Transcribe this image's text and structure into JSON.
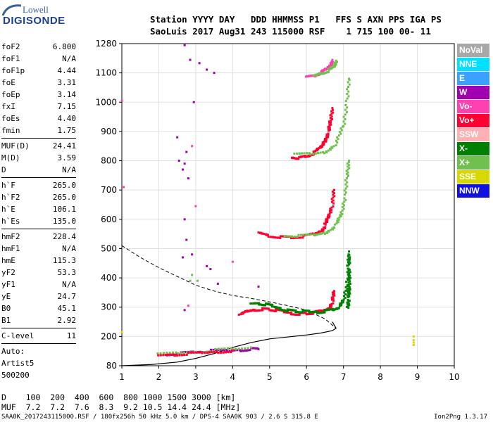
{
  "logo": {
    "line1": "Lowell",
    "line2": "DIGISONDE"
  },
  "header": {
    "row1": "Station YYYY DAY   DDD HHMMSS P1   FFS S AXN PPS IGA PS",
    "row2": "SaoLuis 2017 Aug31 243 115000 RSF    1 715 100 00- 11"
  },
  "params": {
    "group1": [
      {
        "label": "foF2",
        "value": "6.800"
      },
      {
        "label": "foF1",
        "value": "N/A"
      },
      {
        "label": "foF1p",
        "value": "4.44"
      },
      {
        "label": "foE",
        "value": "3.31"
      },
      {
        "label": "foEp",
        "value": "3.14"
      },
      {
        "label": "fxI",
        "value": "7.15"
      },
      {
        "label": "foEs",
        "value": "4.40"
      },
      {
        "label": "fmin",
        "value": "1.75"
      }
    ],
    "group2": [
      {
        "label": "MUF(D)",
        "value": "24.41"
      },
      {
        "label": "M(D)",
        "value": "3.59"
      },
      {
        "label": "D",
        "value": "N/A"
      }
    ],
    "group3": [
      {
        "label": "h`F",
        "value": "265.0"
      },
      {
        "label": "h`F2",
        "value": "265.0"
      },
      {
        "label": "h`E",
        "value": "106.1"
      },
      {
        "label": "h`Es",
        "value": "135.0"
      }
    ],
    "group4": [
      {
        "label": "hmF2",
        "value": "228.4"
      },
      {
        "label": "hmF1",
        "value": "N/A"
      },
      {
        "label": "hmE",
        "value": "115.3"
      },
      {
        "label": "yF2",
        "value": "53.3"
      },
      {
        "label": "yF1",
        "value": "N/A"
      },
      {
        "label": "yE",
        "value": "24.7"
      },
      {
        "label": "B0",
        "value": "45.1"
      },
      {
        "label": "B1",
        "value": "2.92"
      }
    ],
    "clevel": {
      "label": "C-level",
      "value": "11"
    },
    "auto": [
      "Auto:",
      "Artist5",
      "500200"
    ]
  },
  "legend": [
    {
      "label": "NoVal",
      "color": "#a8a8a8"
    },
    {
      "label": "NNE",
      "color": "#00e0ff"
    },
    {
      "label": "E",
      "color": "#3ba0ff"
    },
    {
      "label": "W",
      "color": "#a000b0"
    },
    {
      "label": "Vo-",
      "color": "#ff40b0"
    },
    {
      "label": "Vo+",
      "color": "#ff0030"
    },
    {
      "label": "SSW",
      "color": "#ffb0b0"
    },
    {
      "label": "X-",
      "color": "#008000"
    },
    {
      "label": "X+",
      "color": "#70c050"
    },
    {
      "label": "SSE",
      "color": "#d8d800"
    },
    {
      "label": "NNW",
      "color": "#1010e0"
    }
  ],
  "mufline": {
    "row1": "D    100  200  400  600  800 1000 1500 3000 [km]",
    "row2": "MUF  7.2  7.2  7.6  8.3  9.2 10.5 14.4 24.4 [MHz]"
  },
  "footer": "SAA0K_2017243115000.RSF / 180fx256h 50 kHz 5.0 km / DPS-4 SAA0K 903 / 2.6 S 315.8 E",
  "version": "Ion2Png 1.3.17",
  "chart_data": {
    "type": "scatter",
    "x_ticks": [
      "1",
      "2",
      "3",
      "4",
      "5",
      "6",
      "7",
      "8",
      "9",
      "10"
    ],
    "y_ticks": [
      "80",
      "200",
      "300",
      "400",
      "500",
      "600",
      "700",
      "800",
      "900",
      "1000",
      "1100",
      "1280"
    ],
    "xlim": [
      1,
      10
    ],
    "y_tick_values": [
      80,
      200,
      300,
      400,
      500,
      600,
      700,
      800,
      900,
      1000,
      1100,
      1280
    ],
    "grid": true,
    "profile": {
      "freq": [
        1.0,
        1.8,
        2.5,
        3.0,
        3.5,
        4.0,
        4.5,
        5.0,
        5.5,
        6.0,
        6.4,
        6.7,
        6.8,
        6.7
      ],
      "height": [
        80,
        85,
        95,
        110,
        130,
        155,
        175,
        190,
        198,
        205,
        212,
        220,
        228,
        250
      ]
    },
    "dashed_profile": {
      "freq": [
        1.0,
        1.5,
        2.0,
        2.5,
        3.0,
        3.5,
        4.0,
        4.5,
        5.0,
        5.5,
        6.0,
        6.5,
        6.8
      ],
      "height": [
        510,
        470,
        435,
        405,
        375,
        355,
        340,
        330,
        318,
        305,
        290,
        260,
        228
      ]
    },
    "traces": [
      {
        "color": "#ff0030",
        "freq": [
          4.2,
          4.4,
          4.6,
          4.8,
          5.0,
          5.2,
          5.4,
          5.6,
          5.8,
          6.0,
          6.2,
          6.4,
          6.6,
          6.7,
          6.75
        ],
        "height": [
          270,
          285,
          292,
          294,
          292,
          288,
          283,
          280,
          278,
          278,
          280,
          285,
          295,
          320,
          355
        ]
      },
      {
        "color": "#008000",
        "freq": [
          4.5,
          4.7,
          4.9,
          5.1,
          5.3,
          5.5,
          5.7,
          5.9,
          6.1,
          6.3,
          6.5,
          6.7,
          6.9,
          7.0,
          7.1,
          7.15
        ],
        "height": [
          310,
          312,
          308,
          302,
          296,
          290,
          286,
          284,
          283,
          284,
          287,
          292,
          300,
          320,
          380,
          490
        ]
      },
      {
        "color": "#ff0030",
        "freq": [
          4.7,
          5.0,
          5.3,
          5.6,
          5.9,
          6.2,
          6.4,
          6.5,
          6.6,
          6.7,
          6.75
        ],
        "height": [
          555,
          545,
          540,
          538,
          540,
          548,
          560,
          580,
          610,
          650,
          700
        ]
      },
      {
        "color": "#70c050",
        "freq": [
          5.4,
          5.8,
          6.2,
          6.5,
          6.8,
          6.95,
          7.05,
          7.1,
          7.15
        ],
        "height": [
          545,
          542,
          545,
          555,
          580,
          620,
          680,
          750,
          800
        ]
      },
      {
        "color": "#ff0030",
        "freq": [
          5.6,
          5.8,
          6.0,
          6.2,
          6.4,
          6.5,
          6.6,
          6.65,
          6.7
        ],
        "height": [
          815,
          810,
          815,
          825,
          845,
          870,
          900,
          935,
          980
        ]
      },
      {
        "color": "#70c050",
        "freq": [
          5.7,
          6.1,
          6.5,
          6.8,
          7.0,
          7.1,
          7.15
        ],
        "height": [
          820,
          822,
          830,
          860,
          920,
          1000,
          1080
        ]
      },
      {
        "color": "#ff40b0",
        "freq": [
          6.0,
          6.2,
          6.4,
          6.55,
          6.65,
          6.7
        ],
        "height": [
          1085,
          1090,
          1100,
          1120,
          1150,
          1180
        ]
      },
      {
        "color": "#70c050",
        "freq": [
          6.2,
          6.4,
          6.6,
          6.75,
          6.8
        ],
        "height": [
          1090,
          1100,
          1115,
          1140,
          1175
        ]
      },
      {
        "color": "#008000",
        "freq": [
          7.12,
          7.14,
          7.15,
          7.16,
          7.15,
          7.14
        ],
        "height": [
          300,
          330,
          360,
          400,
          440,
          480
        ]
      },
      {
        "color": "#a000b0",
        "freq": [
          2.2,
          2.6,
          3.0,
          3.4,
          3.8,
          4.2,
          4.5,
          4.7
        ],
        "height": [
          128,
          132,
          136,
          140,
          140,
          145,
          150,
          148
        ]
      },
      {
        "color": "#70c050",
        "freq": [
          2.0,
          2.5,
          3.0,
          3.5,
          4.0,
          4.5
        ],
        "height": [
          125,
          130,
          138,
          145,
          150,
          155
        ]
      },
      {
        "color": "#ff0030",
        "freq": [
          2.0,
          2.4,
          2.8,
          3.2,
          3.6,
          4.0
        ],
        "height": [
          120,
          124,
          128,
          132,
          138,
          142
        ]
      }
    ],
    "scattered": [
      {
        "color": "#a000b0",
        "freq": [
          2.7,
          2.85,
          2.95,
          3.1,
          3.3,
          3.5,
          2.5,
          2.75,
          2.55,
          2.7,
          2.65,
          2.8,
          2.7,
          2.75,
          2.9,
          2.65,
          3.3,
          3.4,
          3.6,
          4.7,
          2.7
        ],
        "height": [
          1270,
          1180,
          1000,
          1160,
          1120,
          1100,
          880,
          830,
          800,
          790,
          770,
          740,
          600,
          530,
          480,
          470,
          440,
          430,
          380,
          370,
          290
        ]
      },
      {
        "color": "#ff40b0",
        "freq": [
          1.0,
          1.05,
          2.9,
          3.0,
          2.8,
          4.0
        ],
        "height": [
          1005,
          710,
          850,
          645,
          305,
          455
        ]
      },
      {
        "color": "#d8d800",
        "freq": [
          1.0,
          8.9,
          8.9,
          8.9,
          8.9
        ],
        "height": [
          215,
          200,
          185,
          175,
          165
        ]
      },
      {
        "color": "#70c050",
        "freq": [
          2.9,
          2.85,
          3.05
        ],
        "height": [
          410,
          390,
          390
        ]
      }
    ]
  }
}
